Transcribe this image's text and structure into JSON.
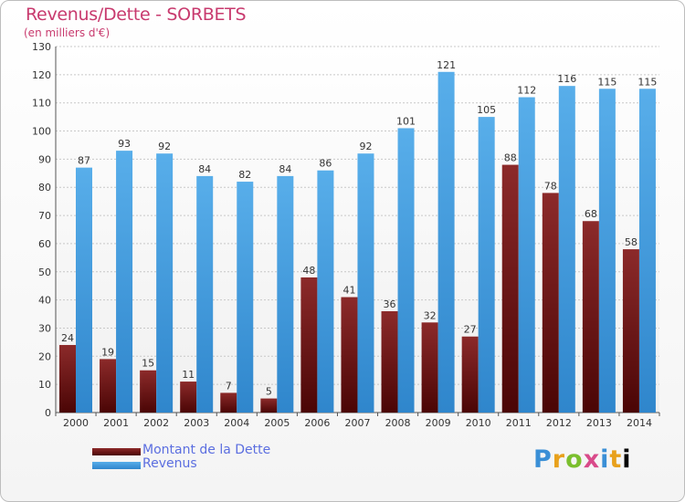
{
  "title": "Revenus/Dette - SORBETS",
  "subtitle": "(en milliers d'€)",
  "logo_text": "Proxiti",
  "colors": {
    "dette": "#7a1a1a",
    "revenus": "#4aa3e6",
    "title": "#c83a6e",
    "legend_text": "#5b6ee0"
  },
  "chart_data": {
    "type": "bar",
    "categories": [
      "2000",
      "2001",
      "2002",
      "2003",
      "2004",
      "2005",
      "2006",
      "2007",
      "2008",
      "2009",
      "2010",
      "2011",
      "2012",
      "2013",
      "2014"
    ],
    "series": [
      {
        "name": "Montant de la Dette",
        "values": [
          24,
          19,
          15,
          11,
          7,
          5,
          48,
          41,
          36,
          32,
          27,
          88,
          78,
          68,
          58
        ]
      },
      {
        "name": "Revenus",
        "values": [
          87,
          93,
          92,
          84,
          82,
          84,
          86,
          92,
          101,
          121,
          105,
          112,
          116,
          115,
          115
        ]
      }
    ],
    "yticks": [
      0,
      10,
      20,
      30,
      40,
      50,
      60,
      70,
      80,
      90,
      100,
      110,
      120,
      130
    ],
    "ylim": [
      0,
      130
    ],
    "grid": true,
    "legend": "bottom-left"
  }
}
